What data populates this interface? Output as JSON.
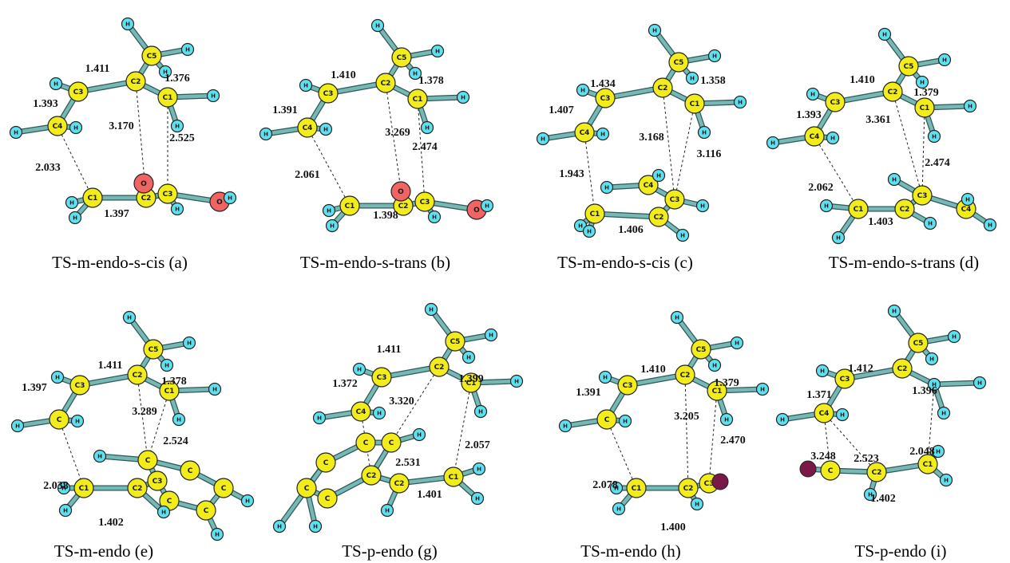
{
  "panels": [
    {
      "caption": "TS-m-endo-s-cis (a)",
      "distances": [
        "1.411",
        "1.376",
        "1.393",
        "3.170",
        "2.525",
        "2.033",
        "1.397"
      ],
      "atoms": [
        "H",
        "C5",
        "H",
        "H",
        "C2",
        "C3",
        "H",
        "C1",
        "H",
        "H",
        "C4",
        "H",
        "H",
        "C1",
        "C2",
        "C3",
        "O",
        "O",
        "H",
        "H",
        "H",
        "H"
      ]
    },
    {
      "caption": "TS-m-endo-s-trans (b)",
      "distances": [
        "1.410",
        "1.378",
        "1.391",
        "3.269",
        "2.474",
        "2.061",
        "1.398"
      ],
      "atoms": [
        "H",
        "C5",
        "H",
        "H",
        "C2",
        "C3",
        "H",
        "C1",
        "H",
        "H",
        "C4",
        "H",
        "H",
        "C1",
        "C2",
        "C3",
        "O",
        "O",
        "H",
        "H",
        "H",
        "H"
      ]
    },
    {
      "caption": "TS-m-endo-s-cis (c)",
      "distances": [
        "1.434",
        "1.358",
        "1.407",
        "3.168",
        "3.116",
        "1.943",
        "1.406"
      ],
      "atoms": [
        "H",
        "C5",
        "H",
        "H",
        "C2",
        "C3",
        "H",
        "C1",
        "H",
        "H",
        "C4",
        "H",
        "H",
        "C1",
        "C2",
        "C3",
        "C4",
        "H",
        "H",
        "H",
        "H",
        "H",
        "H"
      ]
    },
    {
      "caption": "TS-m-endo-s-trans (d)",
      "distances": [
        "1.410",
        "1.379",
        "1.393",
        "3.361",
        "2.474",
        "2.062",
        "1.403"
      ],
      "atoms": [
        "H",
        "C5",
        "H",
        "H",
        "C2",
        "C3",
        "H",
        "C1",
        "H",
        "H",
        "C4",
        "H",
        "H",
        "C1",
        "C2",
        "C3",
        "C4",
        "H",
        "H",
        "H",
        "H",
        "H",
        "H"
      ]
    },
    {
      "caption": "TS-m-endo (e)",
      "distances": [
        "1.411",
        "1.378",
        "1.397",
        "3.289",
        "2.524",
        "2.038",
        "1.402"
      ],
      "atoms": [
        "H",
        "C5",
        "H",
        "H",
        "C2",
        "C3",
        "H",
        "C1",
        "H",
        "H",
        "C",
        "H",
        "H",
        "C1",
        "C2",
        "C3",
        "C",
        "C",
        "C",
        "C",
        "C",
        "H",
        "H",
        "H",
        "H",
        "H",
        "H"
      ]
    },
    {
      "caption": "TS-p-endo (g)",
      "distances": [
        "1.411",
        "1.399",
        "1.372",
        "3.320",
        "2.531",
        "2.057",
        "1.401"
      ],
      "atoms": [
        "H",
        "C5",
        "H",
        "H",
        "C2",
        "C3",
        "H",
        "C1",
        "H",
        "H",
        "C4",
        "H",
        "H",
        "C1",
        "C2",
        "C2",
        "C",
        "C",
        "C",
        "C",
        "C",
        "H",
        "H",
        "H",
        "H",
        "H",
        "H"
      ]
    },
    {
      "caption": "TS-m-endo (h)",
      "distances": [
        "1.410",
        "1.379",
        "1.391",
        "3.205",
        "2.470",
        "2.078",
        "1.400"
      ],
      "atoms": [
        "H",
        "C5",
        "H",
        "H",
        "C2",
        "C3",
        "H",
        "C1",
        "H",
        "H",
        "C",
        "H",
        "H",
        "C1",
        "C2",
        "C3",
        "H",
        "H",
        "H"
      ]
    },
    {
      "caption": "TS-p-endo (i)",
      "distances": [
        "1.412",
        "1.396",
        "1.371",
        "3.248",
        "2.523",
        "2.048",
        "1.402"
      ],
      "atoms": [
        "H",
        "C5",
        "H",
        "H",
        "C2",
        "C3",
        "H",
        "H",
        "H",
        "H",
        "C4",
        "H",
        "H",
        "C1",
        "C2",
        "C",
        "H",
        "H",
        "H"
      ]
    }
  ]
}
